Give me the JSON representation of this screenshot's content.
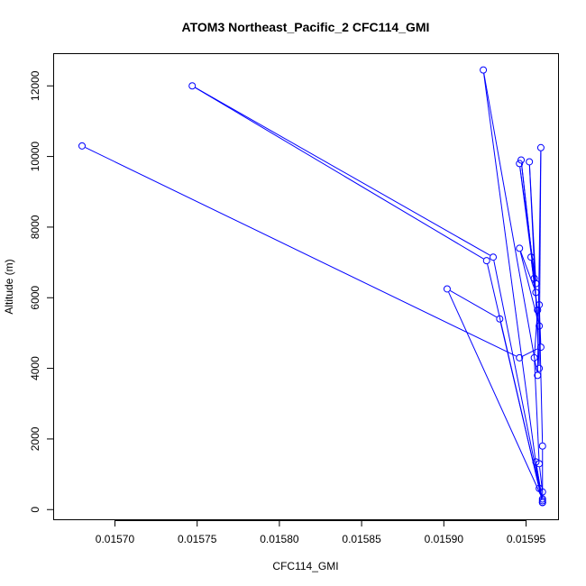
{
  "chart_data": {
    "type": "line",
    "title": "ATOM3 Northeast_Pacific_2 CFC114_GMI",
    "xlabel": "CFC114_GMI",
    "ylabel": "Altitude (m)",
    "xlim": [
      0.015663,
      0.01597
    ],
    "ylim": [
      -300,
      12900
    ],
    "x_ticks": [
      0.0157,
      0.01575,
      0.0158,
      0.01585,
      0.0159,
      0.01595
    ],
    "x_tick_labels": [
      "0.01570",
      "0.01575",
      "0.01580",
      "0.01585",
      "0.01590",
      "0.01595"
    ],
    "y_ticks": [
      0,
      2000,
      4000,
      6000,
      8000,
      10000,
      12000
    ],
    "y_tick_labels": [
      "0",
      "2000",
      "4000",
      "6000",
      "8000",
      "10000",
      "12000"
    ],
    "grid": false,
    "legend": "none",
    "series": [
      {
        "color": "#0000ff",
        "marker": "open-circle",
        "points": [
          {
            "x": 0.01568,
            "y": 10300
          },
          {
            "x": 0.015946,
            "y": 4300
          },
          {
            "x": 0.015959,
            "y": 4600
          },
          {
            "x": 0.015958,
            "y": 5800
          },
          {
            "x": 0.01596,
            "y": 1800
          },
          {
            "x": 0.01596,
            "y": 300
          },
          {
            "x": 0.015902,
            "y": 6250
          },
          {
            "x": 0.015934,
            "y": 5400
          },
          {
            "x": 0.01596,
            "y": 200
          },
          {
            "x": 0.01593,
            "y": 7150
          },
          {
            "x": 0.015747,
            "y": 12000
          },
          {
            "x": 0.015926,
            "y": 7050
          },
          {
            "x": 0.015958,
            "y": 600
          },
          {
            "x": 0.015924,
            "y": 12450
          },
          {
            "x": 0.015957,
            "y": 3800
          },
          {
            "x": 0.015959,
            "y": 10250
          },
          {
            "x": 0.015958,
            "y": 4000
          },
          {
            "x": 0.015952,
            "y": 9850
          },
          {
            "x": 0.015956,
            "y": 6400
          },
          {
            "x": 0.015946,
            "y": 9800
          },
          {
            "x": 0.015955,
            "y": 6550
          },
          {
            "x": 0.015947,
            "y": 9900
          },
          {
            "x": 0.015956,
            "y": 6150
          },
          {
            "x": 0.015946,
            "y": 7400
          },
          {
            "x": 0.015958,
            "y": 5200
          },
          {
            "x": 0.015953,
            "y": 7150
          },
          {
            "x": 0.015957,
            "y": 5650
          },
          {
            "x": 0.015955,
            "y": 4300
          },
          {
            "x": 0.015958,
            "y": 1300
          },
          {
            "x": 0.01596,
            "y": 500
          },
          {
            "x": 0.01596,
            "y": 250
          },
          {
            "x": 0.015956,
            "y": 1350
          },
          {
            "x": 0.01596,
            "y": 200
          }
        ]
      }
    ]
  }
}
